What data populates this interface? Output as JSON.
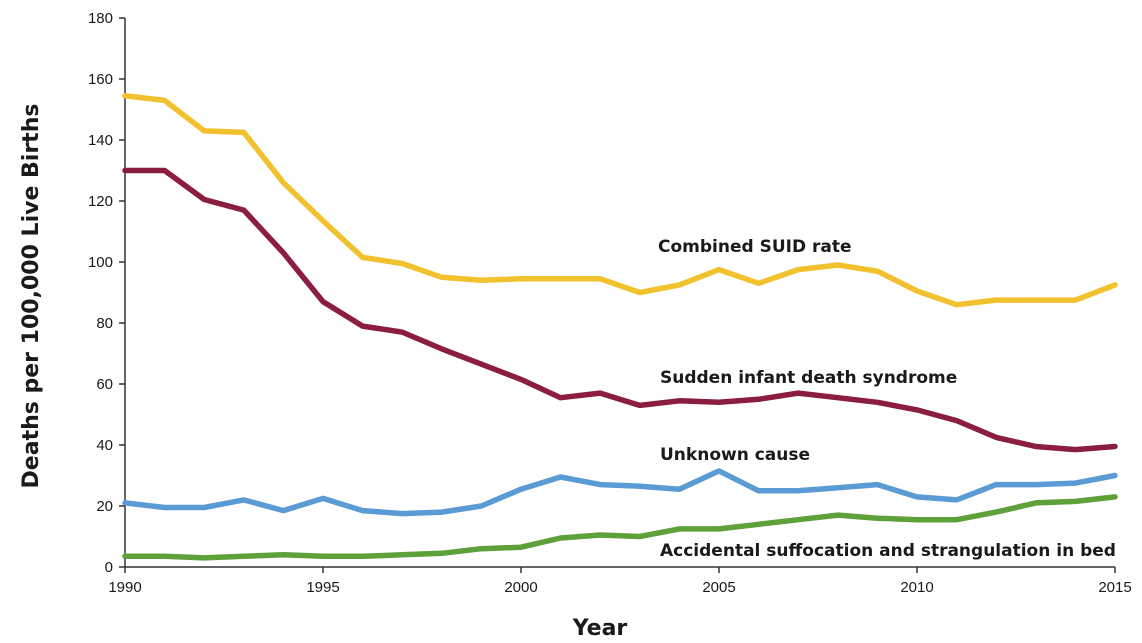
{
  "chart_data": {
    "type": "line",
    "xlabel": "Year",
    "ylabel": "Deaths per 100,000 Live Births",
    "xlim": [
      1990,
      2015
    ],
    "ylim": [
      0,
      180
    ],
    "x_ticks": [
      "1990",
      "1995",
      "2000",
      "2005",
      "2010",
      "2015"
    ],
    "y_ticks": [
      "0",
      "20",
      "40",
      "60",
      "80",
      "100",
      "120",
      "140",
      "160",
      "180"
    ],
    "x": [
      1990,
      1991,
      1992,
      1993,
      1994,
      1995,
      1996,
      1997,
      1998,
      1999,
      2000,
      2001,
      2002,
      2003,
      2004,
      2005,
      2006,
      2007,
      2008,
      2009,
      2010,
      2011,
      2012,
      2013,
      2014,
      2015
    ],
    "series": [
      {
        "name": "Combined SUID rate",
        "color": "#f2c12e",
        "values": [
          154.5,
          153,
          143,
          142.5,
          126,
          113.5,
          101.5,
          99.5,
          95,
          94,
          94.5,
          94.5,
          94.5,
          90,
          92.5,
          97.5,
          93,
          97.5,
          99,
          97,
          90.5,
          86,
          87.5,
          87.5,
          87.5,
          92.5
        ]
      },
      {
        "name": "Sudden infant death syndrome",
        "color": "#8b1d3f",
        "values": [
          130,
          130,
          120.5,
          117,
          103,
          87,
          79,
          77,
          71.5,
          66.5,
          61.5,
          55.5,
          57,
          53,
          54.5,
          54,
          55,
          57,
          55.5,
          54,
          51.5,
          48,
          42.5,
          39.5,
          38.5,
          39.5
        ]
      },
      {
        "name": "Unknown cause",
        "color": "#5b9bd5",
        "values": [
          21,
          19.5,
          19.5,
          22,
          18.5,
          22.5,
          18.5,
          17.5,
          18,
          20,
          25.5,
          29.5,
          27,
          26.5,
          25.5,
          31.5,
          25,
          25,
          26,
          27,
          23,
          22,
          27,
          27,
          27.5,
          30
        ]
      },
      {
        "name": "Accidental suffocation and strangulation in bed",
        "color": "#5ea03a",
        "values": [
          3.5,
          3.5,
          3,
          3.5,
          4,
          3.5,
          3.5,
          4,
          4.5,
          6,
          6.5,
          9.5,
          10.5,
          10,
          12.5,
          12.5,
          14,
          15.5,
          17,
          16,
          15.5,
          15.5,
          18,
          21,
          21.5,
          23
        ]
      }
    ],
    "grid": false,
    "legend": "inline labels next to lines"
  }
}
